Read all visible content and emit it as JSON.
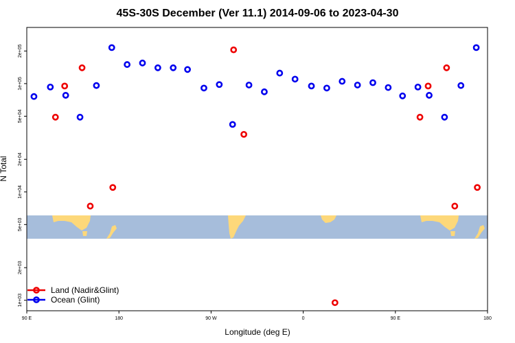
{
  "chart_data": {
    "type": "scatter",
    "title": "45S-30S December (Ver 11.1)   2014-09-06 to 2023-04-30",
    "xlabel": "Longitude (deg E)",
    "ylabel": "N Total",
    "x_scale": "linear",
    "y_scale": "log",
    "xlim": [
      90,
      540
    ],
    "ylim": [
      800,
      330000
    ],
    "x_ticks": [
      {
        "value": 90,
        "label": "90 E"
      },
      {
        "value": 180,
        "label": "180"
      },
      {
        "value": 270,
        "label": "90 W"
      },
      {
        "value": 360,
        "label": "0"
      },
      {
        "value": 450,
        "label": "90 E"
      },
      {
        "value": 540,
        "label": "180"
      }
    ],
    "y_ticks": [
      {
        "value": 1000,
        "label": "1e+03"
      },
      {
        "value": 2000,
        "label": "2e+03"
      },
      {
        "value": 5000,
        "label": "5e+03"
      },
      {
        "value": 10000,
        "label": "1e+04"
      },
      {
        "value": 20000,
        "label": "2e+04"
      },
      {
        "value": 50000,
        "label": "5e+04"
      },
      {
        "value": 100000,
        "label": "1e+05"
      },
      {
        "value": 200000,
        "label": "2e+05"
      }
    ],
    "legend": {
      "position": "bottom-left"
    },
    "series": [
      {
        "name": "Land (Nadir&Glint)",
        "color": "#ee0000",
        "points": [
          {
            "x": 118,
            "y": 49000
          },
          {
            "x": 127,
            "y": 95000
          },
          {
            "x": 144,
            "y": 140000
          },
          {
            "x": 152,
            "y": 7400
          },
          {
            "x": 174,
            "y": 11000
          },
          {
            "x": 292,
            "y": 205000
          },
          {
            "x": 302,
            "y": 34000
          },
          {
            "x": 391,
            "y": 950
          },
          {
            "x": 474,
            "y": 49000
          },
          {
            "x": 482,
            "y": 95000
          },
          {
            "x": 500,
            "y": 140000
          },
          {
            "x": 508,
            "y": 7400
          },
          {
            "x": 530,
            "y": 11000
          }
        ]
      },
      {
        "name": "Ocean (Glint)",
        "color": "#0000ee",
        "points": [
          {
            "x": 97,
            "y": 76000
          },
          {
            "x": 113,
            "y": 93000
          },
          {
            "x": 128,
            "y": 78000
          },
          {
            "x": 142,
            "y": 49000
          },
          {
            "x": 158,
            "y": 96000
          },
          {
            "x": 173,
            "y": 215000
          },
          {
            "x": 188,
            "y": 150000
          },
          {
            "x": 203,
            "y": 155000
          },
          {
            "x": 218,
            "y": 140000
          },
          {
            "x": 233,
            "y": 140000
          },
          {
            "x": 247,
            "y": 135000
          },
          {
            "x": 263,
            "y": 91000
          },
          {
            "x": 278,
            "y": 98000
          },
          {
            "x": 291,
            "y": 42000
          },
          {
            "x": 307,
            "y": 97000
          },
          {
            "x": 322,
            "y": 84000
          },
          {
            "x": 337,
            "y": 125000
          },
          {
            "x": 352,
            "y": 110000
          },
          {
            "x": 368,
            "y": 95000
          },
          {
            "x": 383,
            "y": 91000
          },
          {
            "x": 398,
            "y": 105000
          },
          {
            "x": 413,
            "y": 97000
          },
          {
            "x": 428,
            "y": 102000
          },
          {
            "x": 443,
            "y": 92000
          },
          {
            "x": 457,
            "y": 77000
          },
          {
            "x": 472,
            "y": 93000
          },
          {
            "x": 483,
            "y": 78000
          },
          {
            "x": 498,
            "y": 49000
          },
          {
            "x": 514,
            "y": 96000
          },
          {
            "x": 529,
            "y": 215000
          }
        ]
      }
    ]
  }
}
